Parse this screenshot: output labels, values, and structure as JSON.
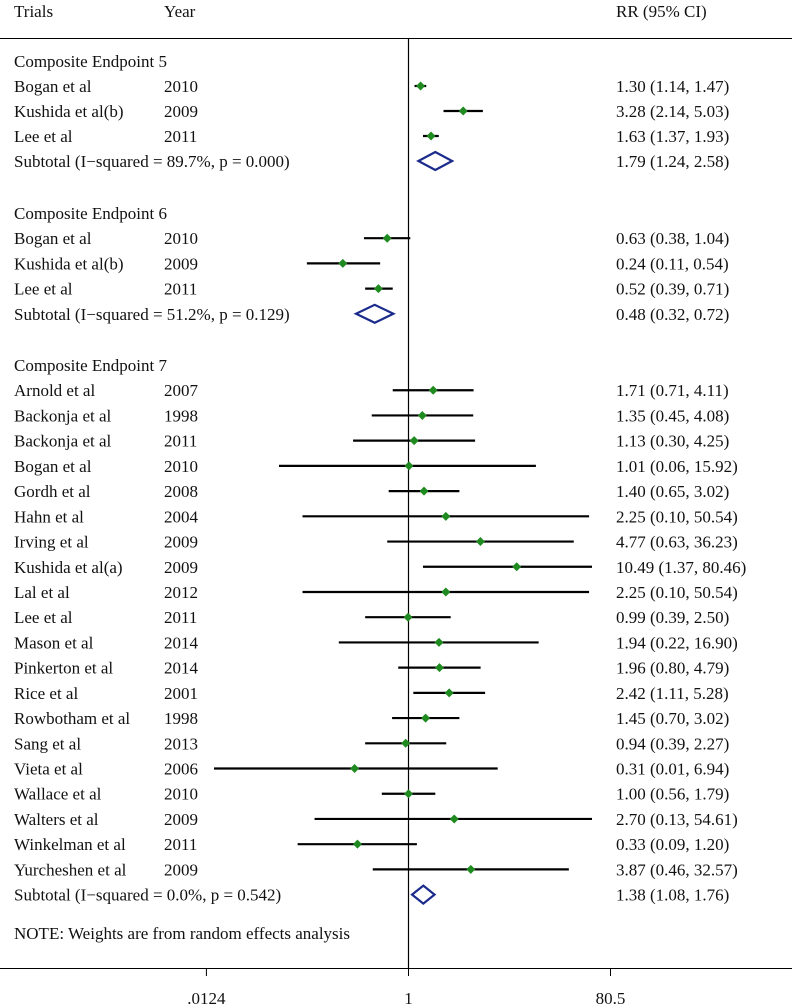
{
  "header": {
    "trials": "Trials",
    "year": "Year",
    "rr": "RR (95% CI)"
  },
  "note": "NOTE: Weights are from random effects analysis",
  "colors": {
    "point": "#1f8a1f",
    "diamond": "#1a2b8c",
    "line": "#000000"
  },
  "chart_data": {
    "type": "forest",
    "axis": {
      "scale": "log",
      "ticks": [
        ".0124",
        "1",
        "80.5"
      ],
      "xlim": [
        0.006,
        420
      ],
      "null_line": 1
    },
    "groups": [
      {
        "title": "Composite Endpoint 5",
        "studies": [
          {
            "name": "Bogan et al",
            "year": "2010",
            "rr": 1.3,
            "lo": 1.14,
            "hi": 1.47,
            "label": "1.30 (1.14, 1.47)"
          },
          {
            "name": "Kushida et al(b)",
            "year": "2009",
            "rr": 3.28,
            "lo": 2.14,
            "hi": 5.03,
            "label": "3.28 (2.14, 5.03)"
          },
          {
            "name": "Lee et al",
            "year": "2011",
            "rr": 1.63,
            "lo": 1.37,
            "hi": 1.93,
            "label": "1.63 (1.37, 1.93)"
          }
        ],
        "subtotal": {
          "name": "Subtotal  (I−squared = 89.7%, p = 0.000)",
          "rr": 1.79,
          "lo": 1.24,
          "hi": 2.58,
          "label": "1.79 (1.24, 2.58)"
        }
      },
      {
        "title": "Composite Endpoint 6",
        "studies": [
          {
            "name": "Bogan et al",
            "year": "2010",
            "rr": 0.63,
            "lo": 0.38,
            "hi": 1.04,
            "label": "0.63 (0.38, 1.04)"
          },
          {
            "name": "Kushida et al(b)",
            "year": "2009",
            "rr": 0.24,
            "lo": 0.11,
            "hi": 0.54,
            "label": "0.24 (0.11, 0.54)"
          },
          {
            "name": "Lee et al",
            "year": "2011",
            "rr": 0.52,
            "lo": 0.39,
            "hi": 0.71,
            "label": "0.52 (0.39, 0.71)"
          }
        ],
        "subtotal": {
          "name": "Subtotal  (I−squared = 51.2%, p = 0.129)",
          "rr": 0.48,
          "lo": 0.32,
          "hi": 0.72,
          "label": "0.48 (0.32, 0.72)"
        }
      },
      {
        "title": "Composite Endpoint 7",
        "studies": [
          {
            "name": "Arnold et al",
            "year": "2007",
            "rr": 1.71,
            "lo": 0.71,
            "hi": 4.11,
            "label": "1.71 (0.71, 4.11)"
          },
          {
            "name": "Backonja et al",
            "year": "1998",
            "rr": 1.35,
            "lo": 0.45,
            "hi": 4.08,
            "label": "1.35 (0.45, 4.08)"
          },
          {
            "name": "Backonja et al",
            "year": "2011",
            "rr": 1.13,
            "lo": 0.3,
            "hi": 4.25,
            "label": "1.13 (0.30, 4.25)"
          },
          {
            "name": "Bogan et al",
            "year": "2010",
            "rr": 1.01,
            "lo": 0.06,
            "hi": 15.92,
            "label": "1.01 (0.06, 15.92)"
          },
          {
            "name": "Gordh et al",
            "year": "2008",
            "rr": 1.4,
            "lo": 0.65,
            "hi": 3.02,
            "label": "1.40 (0.65, 3.02)"
          },
          {
            "name": "Hahn et al",
            "year": "2004",
            "rr": 2.25,
            "lo": 0.1,
            "hi": 50.54,
            "label": "2.25 (0.10, 50.54)"
          },
          {
            "name": "Irving et al",
            "year": "2009",
            "rr": 4.77,
            "lo": 0.63,
            "hi": 36.23,
            "label": "4.77 (0.63, 36.23)"
          },
          {
            "name": "Kushida et al(a)",
            "year": "2009",
            "rr": 10.49,
            "lo": 1.37,
            "hi": 80.46,
            "label": "10.49 (1.37, 80.46)"
          },
          {
            "name": "Lal et al",
            "year": "2012",
            "rr": 2.25,
            "lo": 0.1,
            "hi": 50.54,
            "label": "2.25 (0.10, 50.54)"
          },
          {
            "name": "Lee et al",
            "year": "2011",
            "rr": 0.99,
            "lo": 0.39,
            "hi": 2.5,
            "label": "0.99 (0.39, 2.50)"
          },
          {
            "name": "Mason et al",
            "year": "2014",
            "rr": 1.94,
            "lo": 0.22,
            "hi": 16.9,
            "label": "1.94 (0.22, 16.90)"
          },
          {
            "name": "Pinkerton et al",
            "year": "2014",
            "rr": 1.96,
            "lo": 0.8,
            "hi": 4.79,
            "label": "1.96 (0.80, 4.79)"
          },
          {
            "name": "Rice et al",
            "year": "2001",
            "rr": 2.42,
            "lo": 1.11,
            "hi": 5.28,
            "label": "2.42 (1.11, 5.28)"
          },
          {
            "name": "Rowbotham et al",
            "year": "1998",
            "rr": 1.45,
            "lo": 0.7,
            "hi": 3.02,
            "label": "1.45 (0.70, 3.02)"
          },
          {
            "name": "Sang et al",
            "year": "2013",
            "rr": 0.94,
            "lo": 0.39,
            "hi": 2.27,
            "label": "0.94 (0.39, 2.27)"
          },
          {
            "name": "Vieta et al",
            "year": "2006",
            "rr": 0.31,
            "lo": 0.01,
            "hi": 6.94,
            "label": "0.31 (0.01, 6.94)"
          },
          {
            "name": "Wallace et al",
            "year": "2010",
            "rr": 1.0,
            "lo": 0.56,
            "hi": 1.79,
            "label": "1.00 (0.56, 1.79)"
          },
          {
            "name": "Walters et al",
            "year": "2009",
            "rr": 2.7,
            "lo": 0.13,
            "hi": 54.61,
            "label": "2.70 (0.13, 54.61)"
          },
          {
            "name": "Winkelman et al",
            "year": "2011",
            "rr": 0.33,
            "lo": 0.09,
            "hi": 1.2,
            "label": "0.33 (0.09, 1.20)"
          },
          {
            "name": "Yurcheshen et al",
            "year": "2009",
            "rr": 3.87,
            "lo": 0.46,
            "hi": 32.57,
            "label": "3.87 (0.46, 32.57)"
          }
        ],
        "subtotal": {
          "name": "Subtotal  (I−squared = 0.0%, p = 0.542)",
          "rr": 1.38,
          "lo": 1.08,
          "hi": 1.76,
          "label": "1.38 (1.08, 1.76)"
        }
      }
    ]
  }
}
